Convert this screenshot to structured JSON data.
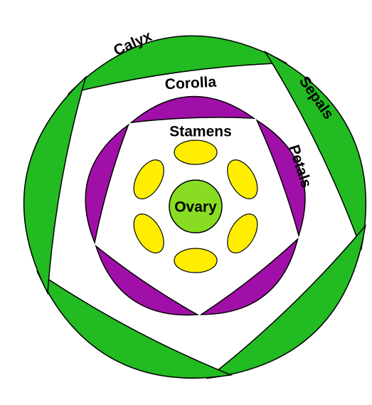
{
  "title_labels": {
    "calyx": "Calyx",
    "sepals": "Sepals",
    "corolla": "Corolla",
    "petals": "Petals",
    "stamens": "Stamens",
    "ovary": "Ovary"
  }
}
